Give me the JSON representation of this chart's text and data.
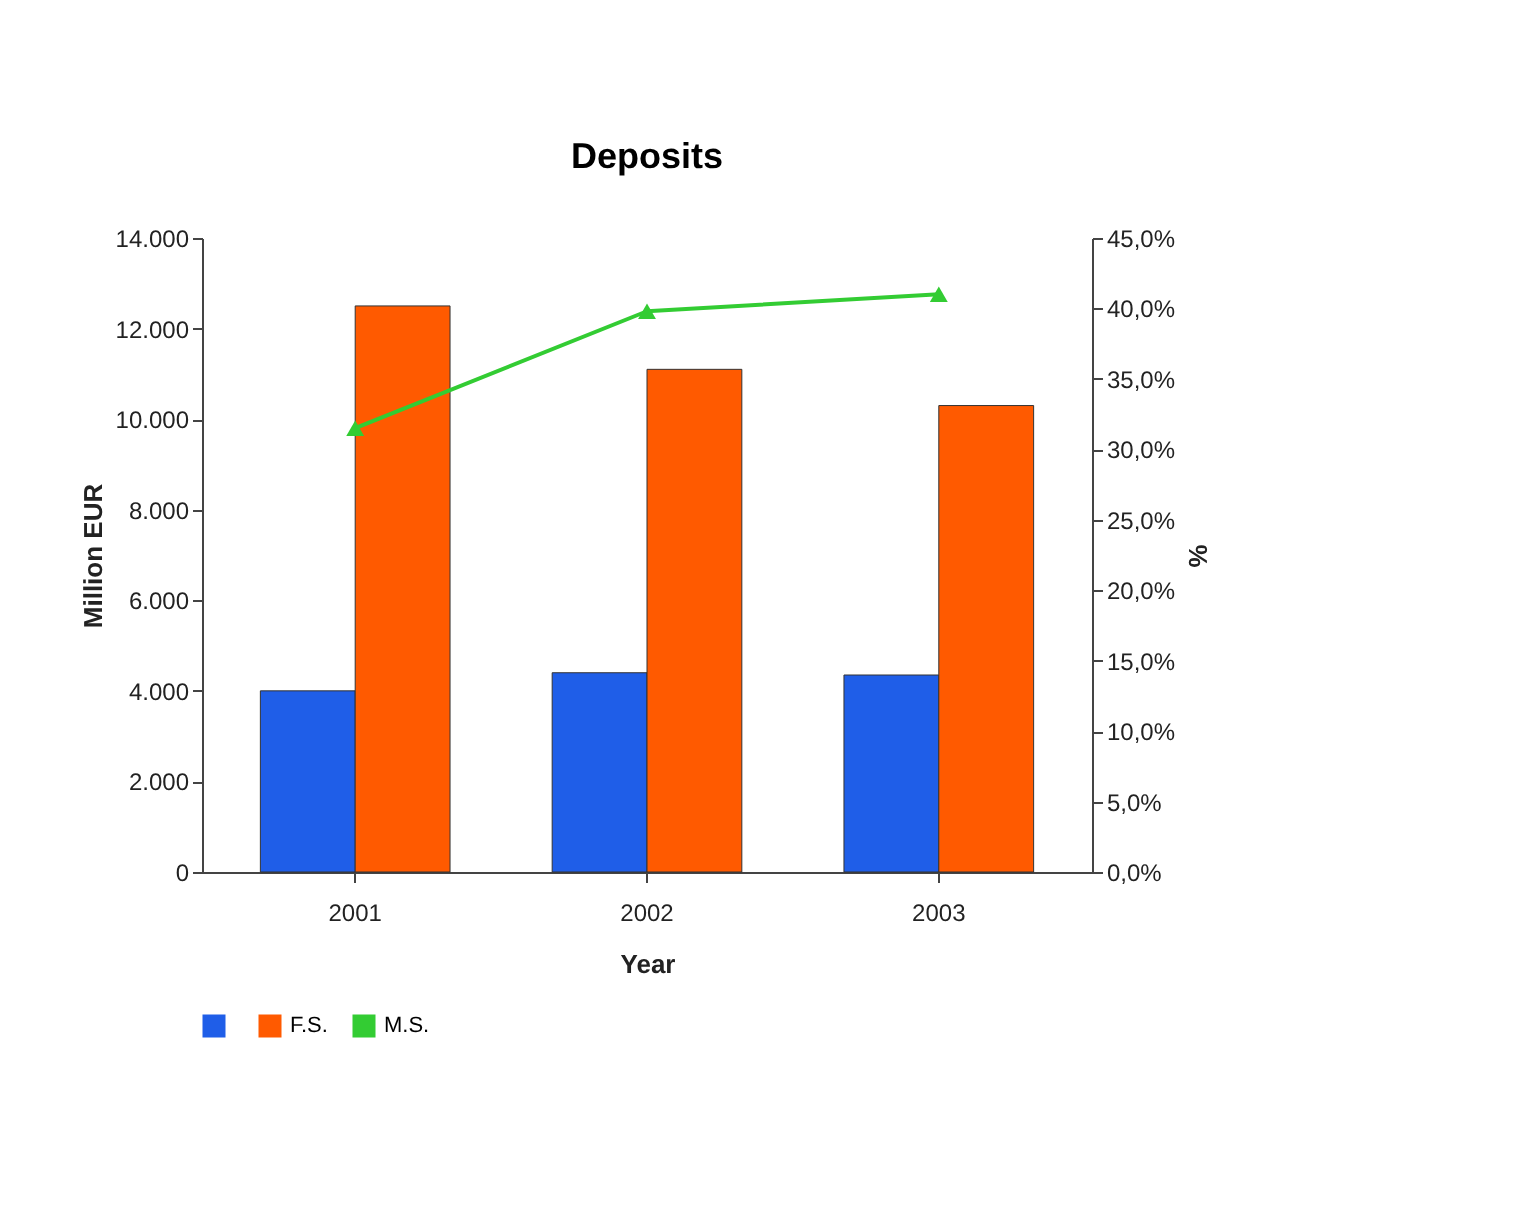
{
  "chart_data": {
    "type": "bar",
    "title": "Deposits",
    "xlabel": "Year",
    "ylabel": "Million EUR",
    "y2label": "%",
    "categories": [
      "2001",
      "2002",
      "2003"
    ],
    "series": [
      {
        "color": "#1f5ee8",
        "values": [
          4000,
          4400,
          4350
        ]
      },
      {
        "name": "F.S.",
        "color": "#ff5a00",
        "values": [
          12500,
          11100,
          10300
        ]
      },
      {
        "name": "M.S.",
        "type": "line",
        "axis": "y2",
        "color": "#33cc33",
        "values": [
          31.5,
          39.8,
          41.0
        ]
      }
    ],
    "ylim": [
      0,
      14000
    ],
    "yticks": [
      {
        "value": 0,
        "label": "0"
      },
      {
        "value": 2000,
        "label": "2.000"
      },
      {
        "value": 4000,
        "label": "4.000"
      },
      {
        "value": 6000,
        "label": "6.000"
      },
      {
        "value": 8000,
        "label": "8.000"
      },
      {
        "value": 10000,
        "label": "10.000"
      },
      {
        "value": 12000,
        "label": "12.000"
      },
      {
        "value": 14000,
        "label": "14.000"
      }
    ],
    "y2lim": [
      0,
      45
    ],
    "y2ticks": [
      {
        "value": 0,
        "label": "0,0%"
      },
      {
        "value": 5,
        "label": "5,0%"
      },
      {
        "value": 10,
        "label": "10,0%"
      },
      {
        "value": 15,
        "label": "15,0%"
      },
      {
        "value": 20,
        "label": "20,0%"
      },
      {
        "value": 25,
        "label": "25,0%"
      },
      {
        "value": 30,
        "label": "30,0%"
      },
      {
        "value": 35,
        "label": "35,0%"
      },
      {
        "value": 40,
        "label": "40,0%"
      },
      {
        "value": 45,
        "label": "45,0%"
      }
    ],
    "grid": false,
    "legend": "bottom",
    "marker": "triangle",
    "line_style": "solid"
  }
}
